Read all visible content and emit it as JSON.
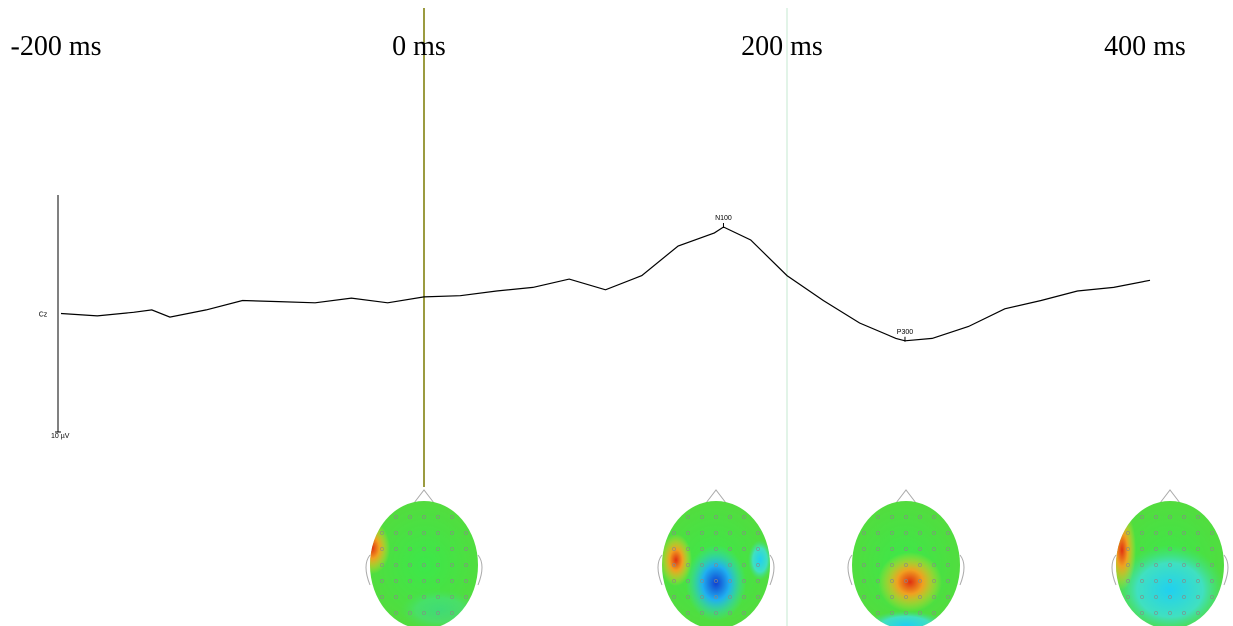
{
  "chart_data": {
    "type": "line",
    "x": [
      -200,
      -180,
      -160,
      -150,
      -140,
      -120,
      -100,
      -80,
      -60,
      -40,
      -20,
      0,
      20,
      40,
      60,
      80,
      100,
      120,
      140,
      160,
      165,
      180,
      200,
      220,
      240,
      260,
      265,
      280,
      300,
      320,
      340,
      360,
      380,
      400
    ],
    "series": [
      {
        "name": "Cz",
        "color": "#000000",
        "values": [
          0,
          0.2,
          -0.1,
          -0.3,
          0.3,
          -0.3,
          -1.1,
          -1.0,
          -0.9,
          -1.3,
          -0.9,
          -1.4,
          -1.5,
          -1.9,
          -2.2,
          -2.9,
          -2.0,
          -3.2,
          -5.7,
          -6.8,
          -7.3,
          -6.2,
          -3.2,
          -1.1,
          0.8,
          2.1,
          2.3,
          2.1,
          1.1,
          -0.4,
          -1.1,
          -1.9,
          -2.2,
          -2.8
        ]
      }
    ],
    "xlim": [
      -200,
      400
    ],
    "xticks": [
      {
        "value": -200,
        "label": "-200 ms"
      },
      {
        "value": 0,
        "label": "0 ms"
      },
      {
        "value": 200,
        "label": "200 ms"
      },
      {
        "value": 400,
        "label": "400 ms"
      }
    ],
    "ylim": [
      -10,
      10
    ],
    "y_inverted": true,
    "yticks": [
      {
        "value": 10,
        "label": "10 µV"
      }
    ],
    "annotations": [
      {
        "text": "N100",
        "x": 165,
        "y": -7.3
      },
      {
        "text": "P300",
        "x": 265,
        "y": 2.3
      }
    ],
    "cursors": [
      {
        "x": 0,
        "color": "#7a7a00"
      },
      {
        "x": 200,
        "color": "#c4ead0"
      }
    ]
  }
}
